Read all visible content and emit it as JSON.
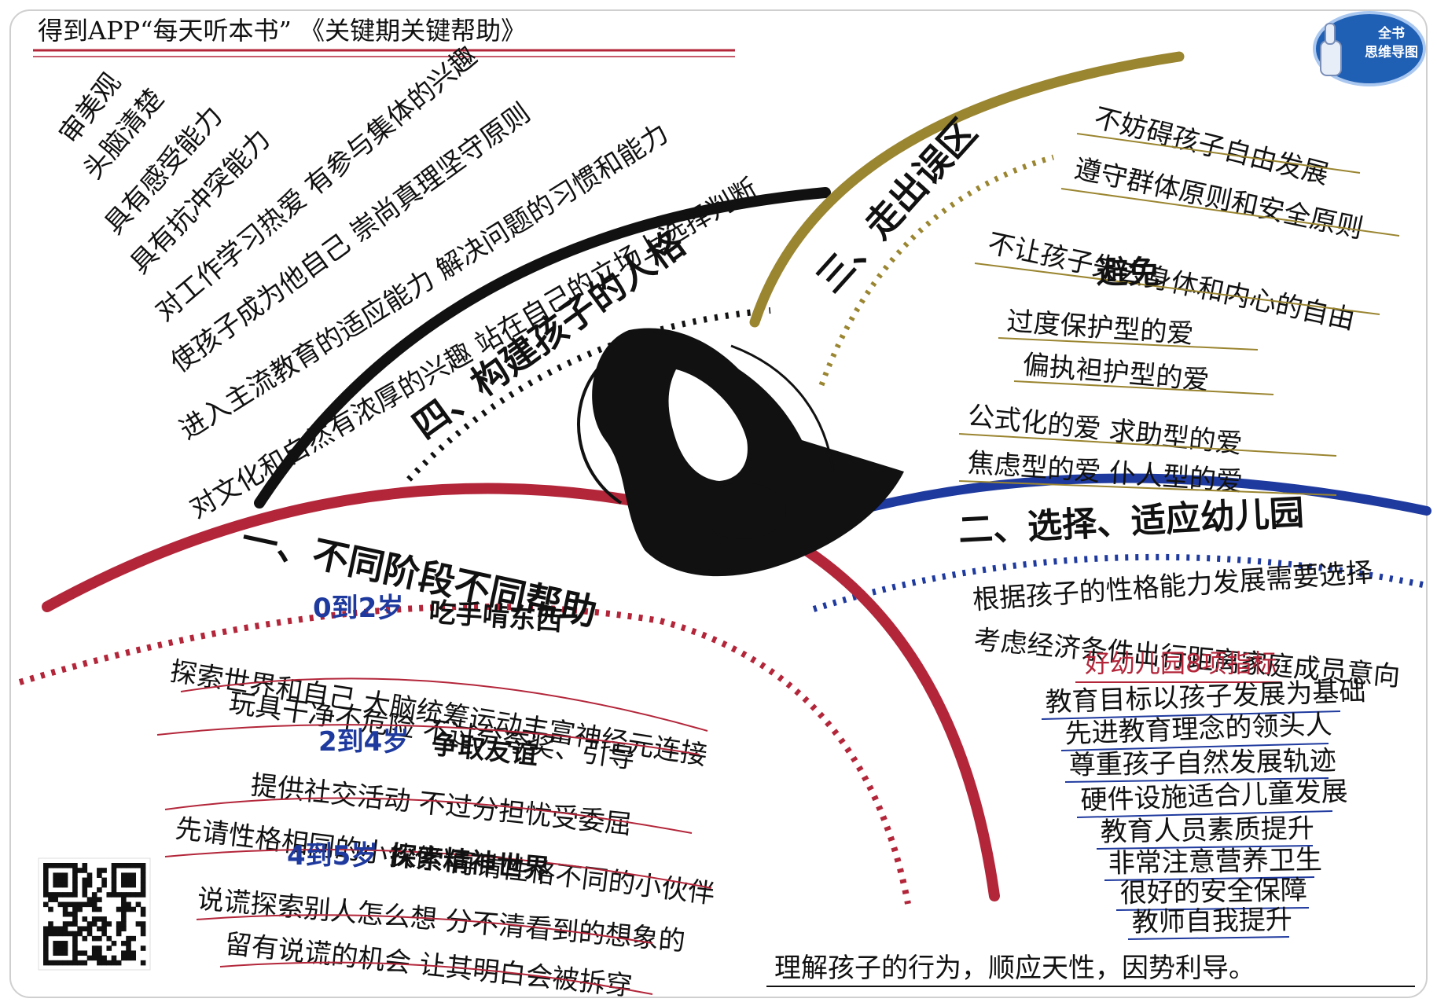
{
  "header": {
    "title": "得到APP“每天听本书”  《关键期关键帮助》",
    "badge_line1": "全书",
    "badge_line2": "思维导图"
  },
  "colors": {
    "red": "#b3263a",
    "blue": "#1f3a9e",
    "olive": "#9a8530",
    "black": "#111111"
  },
  "section4": {
    "title": "四、构建孩子的人格",
    "items": [
      "审美观",
      "头脑清楚",
      "具有感受能力",
      "具有抗冲突能力",
      "对工作学习热爱  有参与集体的兴趣",
      "使孩子成为他自己  崇尚真理坚守原则",
      "进入主流教育的适应能力  解决问题的习惯和能力",
      "对文化和自然有浓厚的兴趣  站在自己的立场上选择判断"
    ]
  },
  "section3": {
    "title": "三、走出误区",
    "items": [
      "不妨碍孩子自由发展",
      "遵守群体原则和安全原则",
      "不让孩子失去身体和内心的自由"
    ],
    "avoid_label": "避免",
    "avoid_items": [
      "过度保护型的爱",
      "偏执袒护型的爱",
      "公式化的爱  求助型的爱",
      "焦虑型的爱  仆人型的爱"
    ]
  },
  "section1": {
    "title": "一、不同阶段不同帮助",
    "stages": [
      {
        "age": "0到2岁",
        "theme": "吃手啃东西",
        "lines": [
          "探索世界和自己  大脑统筹运动丰富神经元连接",
          "玩具干净不危险  不过分夸奖、引导"
        ]
      },
      {
        "age": "2到4岁",
        "theme": "争取友谊",
        "lines": [
          "提供社交活动  不过分担忧受委屈",
          "先请性格相同的小伙伴  再请性格不同的小伙伴"
        ]
      },
      {
        "age": "4到5岁",
        "theme": "探索精神世界",
        "lines": [
          "说谎探索别人怎么想  分不清看到的想象的",
          "留有说谎的机会  让其明白会被拆穿"
        ]
      }
    ]
  },
  "section2": {
    "title": "二、选择、适应幼儿园",
    "items": [
      "根据孩子的性格能力发展需要选择",
      "考虑经济条件出行距离家庭成员意向"
    ],
    "indicators_title": "好幼儿园8项指标",
    "indicators": [
      "教育目标以孩子发展为基础",
      "先进教育理念的领头人",
      "尊重孩子自然发展轨迹",
      "硬件设施适合儿童发展",
      "教育人员素质提升",
      "非常注意营养卫生",
      "很好的安全保障",
      "教师自我提升"
    ]
  },
  "footer": {
    "summary": "理解孩子的行为，顺应天性，因势利导。"
  }
}
